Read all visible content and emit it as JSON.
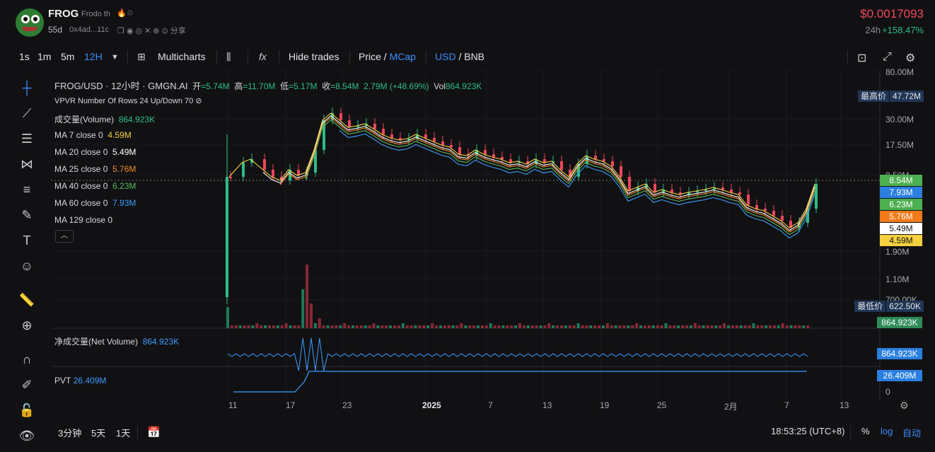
{
  "token": {
    "name": "FROG",
    "subtitle": "Frodo th",
    "age": "55d",
    "address": "0x4ad...11c",
    "share": "分享",
    "price": "$0.0017093",
    "change_label": "24h",
    "change_value": "+158.47%"
  },
  "toolbar": {
    "intervals": [
      "1s",
      "1m",
      "5m",
      "12H"
    ],
    "active_interval": "12H",
    "multicharts": "Multicharts",
    "indicator_icon": "fx",
    "hide_trades": "Hide trades",
    "price": "Price",
    "mcap": "MCap",
    "usd": "USD",
    "bnb": "BNB"
  },
  "legend": {
    "title": "FROG/USD · 12小时 · GMGN.AI",
    "o_label": "开",
    "o": "=5.74M",
    "h_label": "高",
    "h": "=11.70M",
    "l_label": "低",
    "l": "=5.17M",
    "c_label": "收",
    "c": "=8.54M",
    "chg": "2.79M (+48.69%)",
    "vol_label": "Vol",
    "vol": "864.923K",
    "vpvr": "VPVR Number Of Rows 24 Up/Down 70",
    "volume_label": "成交量(Volume)",
    "volume_value": "864.923K",
    "mas": [
      {
        "label": "MA 7 close 0",
        "value": "4.59M",
        "color": "#f5d140"
      },
      {
        "label": "MA 20 close 0",
        "value": "5.49M",
        "color": "#ffffff"
      },
      {
        "label": "MA 25 close 0",
        "value": "5.76M",
        "color": "#f08a2a"
      },
      {
        "label": "MA 40 close 0",
        "value": "6.23M",
        "color": "#5cb85c"
      },
      {
        "label": "MA 60 close 0",
        "value": "7.93M",
        "color": "#3c9cff"
      },
      {
        "label": "MA 129 close 0",
        "value": "",
        "color": "#aaaaaa"
      }
    ],
    "net_volume_label": "净成交量(Net Volume)",
    "net_volume_value": "864.923K",
    "pvt_label": "PVT",
    "pvt_value": "26.409M"
  },
  "axis": {
    "y_ticks": [
      "80.00M",
      "30.00M",
      "17.50M",
      "9.50M",
      "1.90M",
      "1.10M",
      "700.00K"
    ],
    "x_ticks": [
      "11",
      "17",
      "23",
      "2025",
      "7",
      "13",
      "19",
      "25",
      "2月",
      "7",
      "13"
    ],
    "pvt_zero": "0"
  },
  "markers": {
    "high_label": "最高价",
    "high_value": "47.72M",
    "low_label": "最低价",
    "low_value": "622.50K"
  },
  "price_labels": [
    {
      "value": "8.54M",
      "color": "#4caf50"
    },
    {
      "value": "7.93M",
      "color": "#2a7fe0"
    },
    {
      "value": "6.23M",
      "color": "#4caf50"
    },
    {
      "value": "5.76M",
      "color": "#f07a1a"
    },
    {
      "value": "5.49M",
      "color": "#ffffff"
    },
    {
      "value": "4.59M",
      "color": "#f5d140"
    },
    {
      "value": "864.923K",
      "color": "#2e8b57"
    },
    {
      "value": "864.923K",
      "color": "#2a7fe0"
    },
    {
      "value": "26.409M",
      "color": "#2a7fe0"
    }
  ],
  "bottom": {
    "ranges": [
      "3分钟",
      "5天",
      "1天"
    ],
    "time": "18:53:25 (UTC+8)",
    "percent": "%",
    "log": "log",
    "auto": "自动"
  }
}
